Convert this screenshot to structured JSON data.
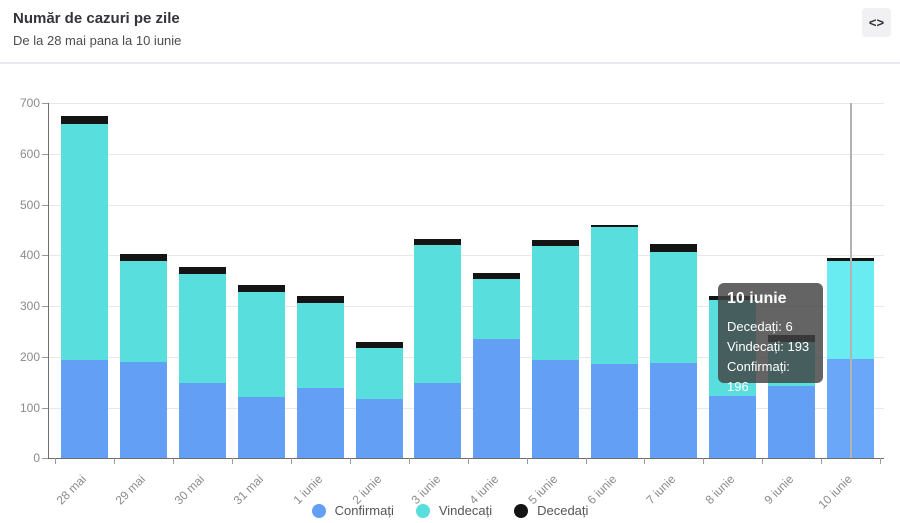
{
  "header": {
    "title": "Număr de cazuri pe zile",
    "subtitle": "De la 28 mai pana la 10 iunie",
    "code_button_glyph": "<>"
  },
  "legend": [
    {
      "label": "Confirmați",
      "color": "#639ff5"
    },
    {
      "label": "Vindecați",
      "color": "#58dedd"
    },
    {
      "label": "Decedați",
      "color": "#141414"
    }
  ],
  "tooltip": {
    "title": "10 iunie",
    "lines": [
      "Decedați: 6",
      "Vindecați: 193",
      "Confirmați: 196"
    ]
  },
  "colors": {
    "confirmed": "#639ff5",
    "recovered": "#58dedd",
    "deceased": "#141414",
    "confirmed_hover": "#6ba7f8",
    "recovered_hover": "#68ecf2",
    "grid": "#e8e8e8",
    "axis": "#6e6e6e",
    "tick_label": "#8b8b8b",
    "crosshair": "#b3b3b3"
  },
  "chart_data": {
    "type": "bar",
    "stacked": true,
    "title": "Număr de cazuri pe zile",
    "xlabel": "",
    "ylabel": "",
    "ylim": [
      0,
      700
    ],
    "yticks": [
      0,
      100,
      200,
      300,
      400,
      500,
      600,
      700
    ],
    "grid": true,
    "legend_position": "bottom",
    "hovered_category": "10 iunie",
    "categories": [
      "28 mai",
      "29 mai",
      "30 mai",
      "31 mai",
      "1 iunie",
      "2 iunie",
      "3 iunie",
      "4 iunie",
      "5 iunie",
      "6 iunie",
      "7 iunie",
      "8 iunie",
      "9 iunie",
      "10 iunie"
    ],
    "series": [
      {
        "name": "Confirmați",
        "color": "#639ff5",
        "values": [
          194,
          189,
          149,
          121,
          138,
          116,
          149,
          235,
          193,
          185,
          187,
          122,
          143,
          196
        ]
      },
      {
        "name": "Vindecați",
        "color": "#58dedd",
        "values": [
          465,
          200,
          214,
          207,
          169,
          102,
          272,
          119,
          226,
          271,
          220,
          190,
          87,
          193
        ]
      },
      {
        "name": "Decedați",
        "color": "#141414",
        "values": [
          16,
          14,
          14,
          13,
          13,
          12,
          12,
          11,
          12,
          5,
          15,
          9,
          13,
          6
        ]
      }
    ]
  }
}
